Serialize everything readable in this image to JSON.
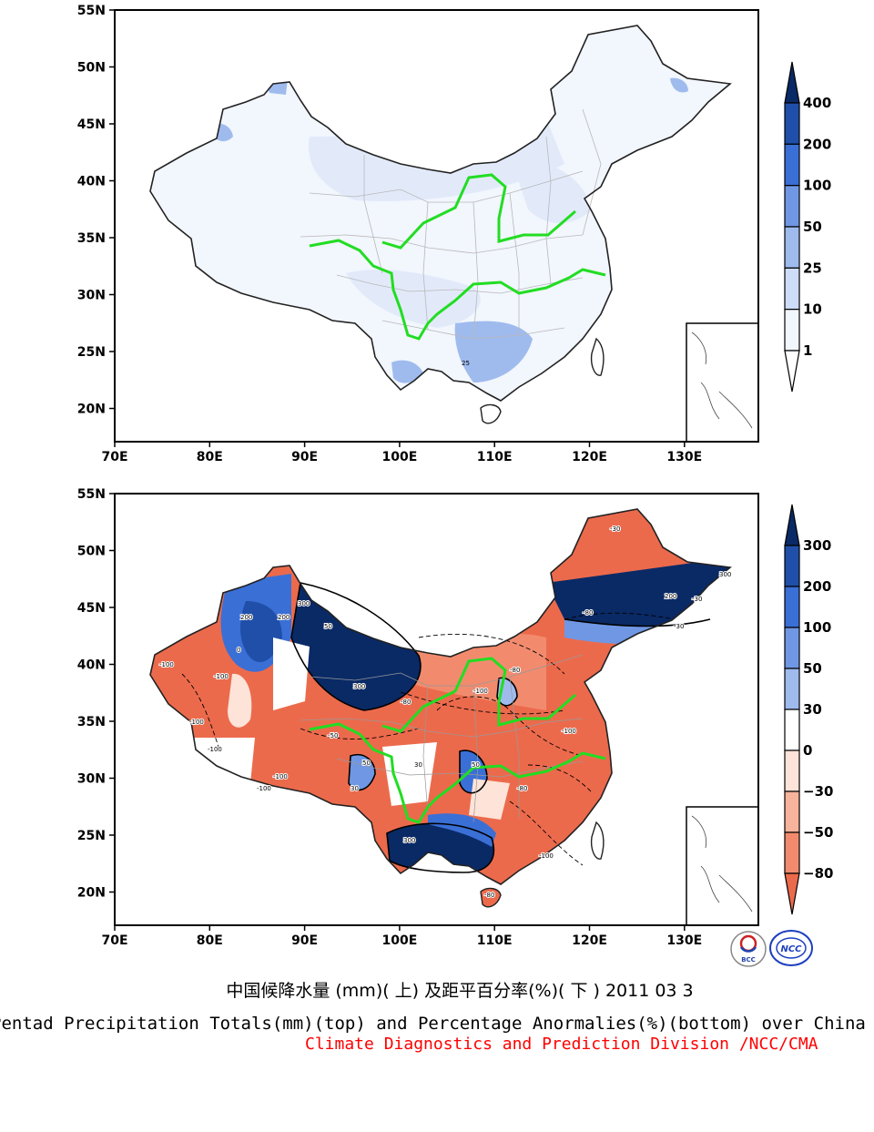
{
  "maps": {
    "top": {
      "name": "pentad-precipitation-totals",
      "lat_ticks": [
        "55N",
        "50N",
        "45N",
        "40N",
        "35N",
        "30N",
        "25N",
        "20N"
      ],
      "lon_ticks": [
        "70E",
        "80E",
        "90E",
        "100E",
        "110E",
        "120E",
        "130E"
      ],
      "colorbar_labels": [
        "400",
        "200",
        "100",
        "50",
        "25",
        "10",
        "1"
      ],
      "colorbar_colors": [
        "#0a2a66",
        "#1f4fa8",
        "#3a6fd6",
        "#6f97e4",
        "#9fbbee",
        "#cddcf7",
        "#f2f6fd",
        "#ffffff"
      ],
      "contour_labels": [
        "25"
      ]
    },
    "bottom": {
      "name": "precipitation-percentage-anomalies",
      "lat_ticks": [
        "55N",
        "50N",
        "45N",
        "40N",
        "35N",
        "30N",
        "25N",
        "20N"
      ],
      "lon_ticks": [
        "70E",
        "80E",
        "90E",
        "100E",
        "110E",
        "120E",
        "130E"
      ],
      "colorbar_labels": [
        "300",
        "200",
        "100",
        "50",
        "30",
        "0",
        "−30",
        "−50",
        "−80"
      ],
      "colorbar_colors": [
        "#0a2a66",
        "#1f4fa8",
        "#3a6fd6",
        "#6f97e4",
        "#9fbbee",
        "#ffffff",
        "#fde3d8",
        "#f8b39c",
        "#f28b6e",
        "#ec6a4c"
      ],
      "contour_labels": [
        "-100",
        "-50",
        "-80",
        "-30",
        "0",
        "30",
        "50",
        "100",
        "200",
        "300"
      ]
    }
  },
  "title": {
    "chinese": "中国候降水量 (mm)( 上) 及距平百分率(%)( 下 ) 2011 03 3",
    "english": "Pentad Precipitation Totals(mm)(top) and Percentage Anormalies(%)(bottom) over China",
    "organization": "Climate Diagnostics and Prediction Division /NCC/CMA"
  },
  "logos": {
    "bcc": "BCC",
    "ncc": "NCC"
  }
}
